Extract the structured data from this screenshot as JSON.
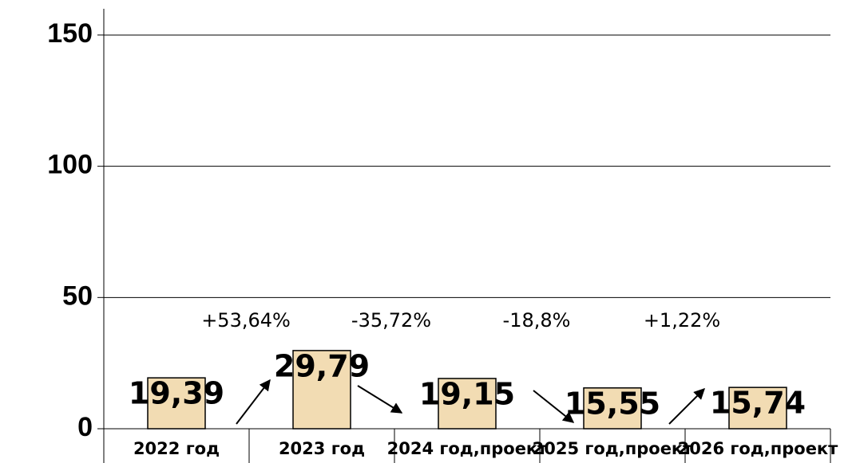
{
  "chart_data": {
    "type": "bar",
    "categories": [
      "2022 год",
      "2023 год",
      "2024 год,проект",
      "2025 год,проект",
      "2026 год,проект"
    ],
    "values": [
      19.39,
      29.79,
      19.15,
      15.55,
      15.74
    ],
    "value_labels": [
      "19,39",
      "29,79",
      "19,15",
      "15,55",
      "15,74"
    ],
    "color": "#f2dcb3",
    "annotations": [
      "+53,64%",
      "-35,72%",
      "-18,8%",
      "+1,22%"
    ],
    "ylim": [
      0,
      160
    ],
    "yticks": [
      0,
      50,
      100,
      150
    ],
    "grid": true
  }
}
